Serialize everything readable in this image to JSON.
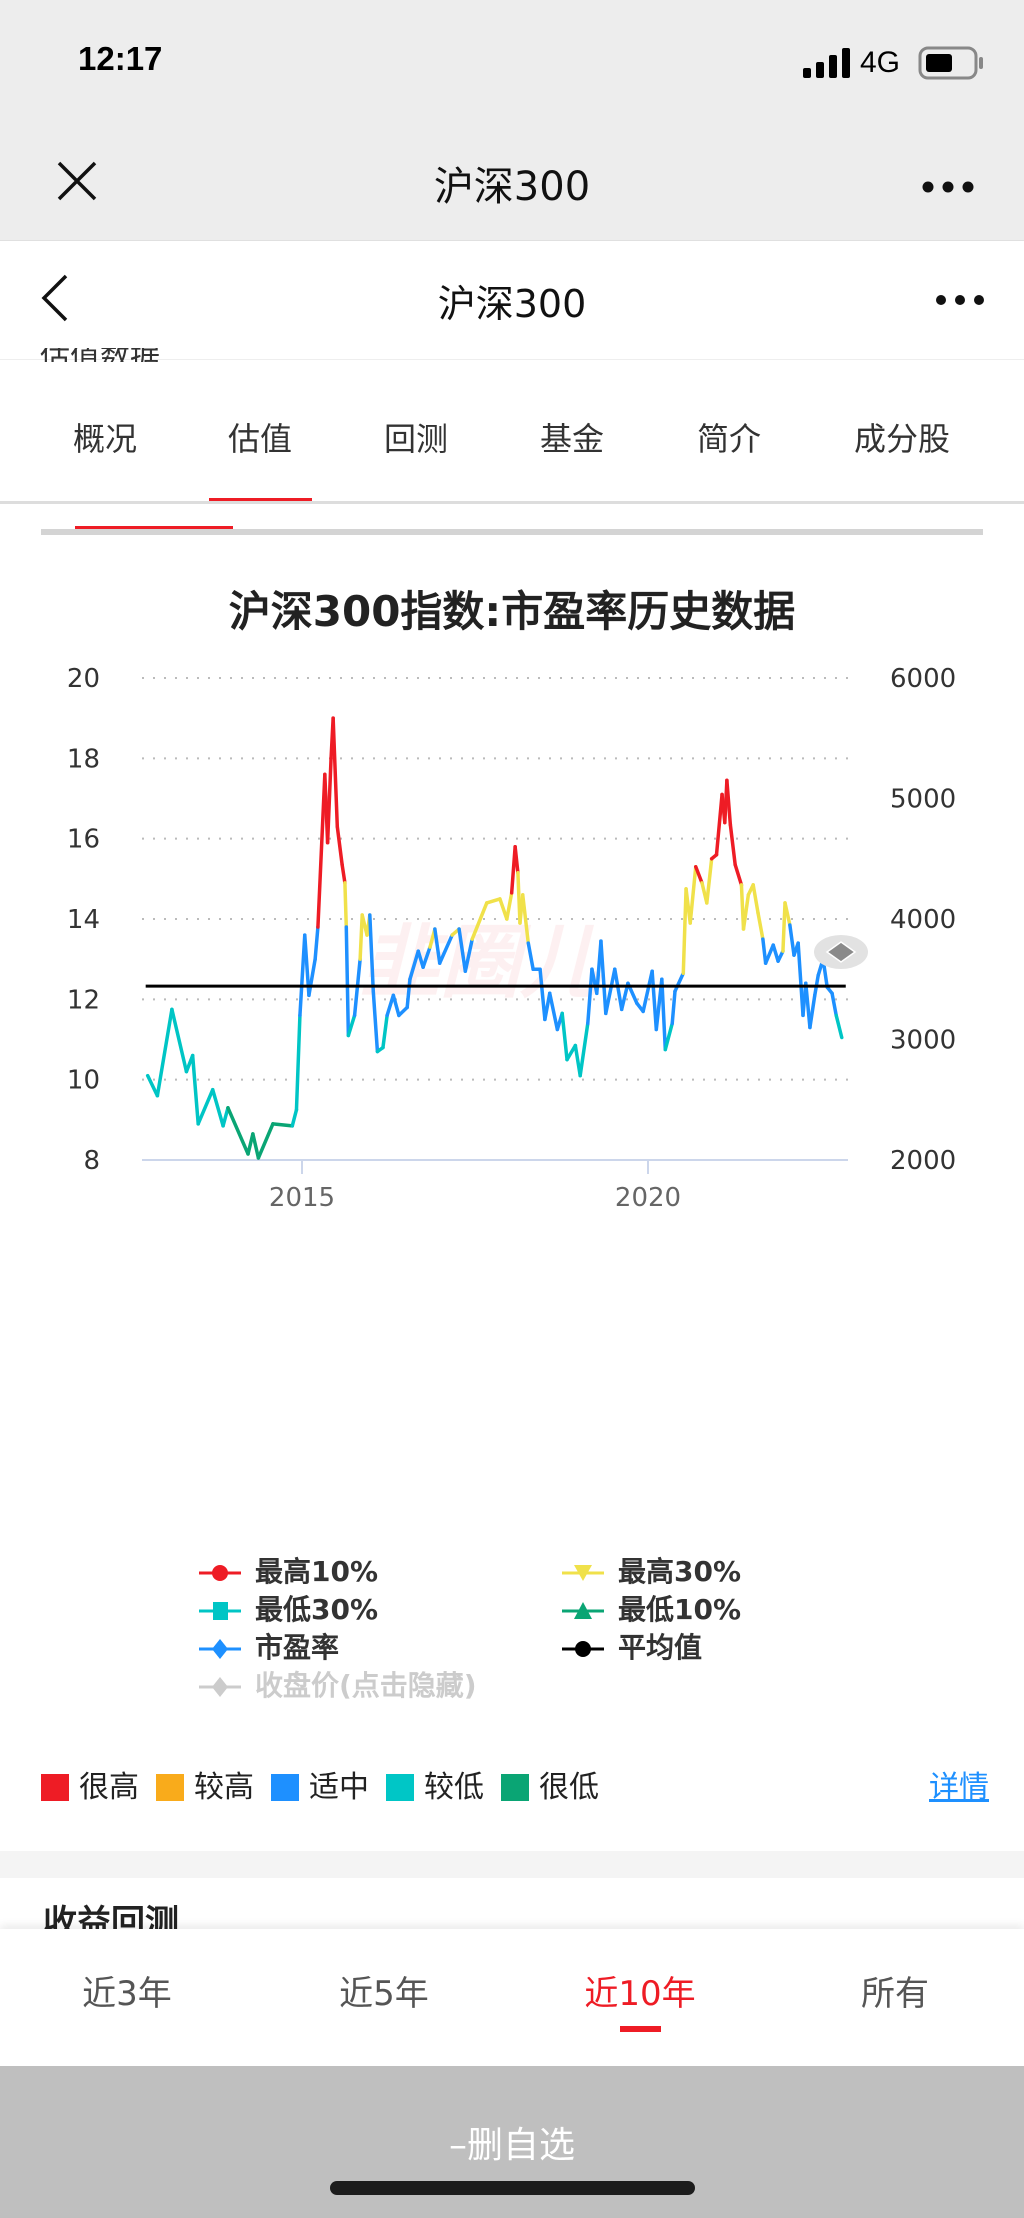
{
  "status_bar": {
    "time": "12:17",
    "network": "4G"
  },
  "wechat_bar": {
    "title": "沪深300"
  },
  "page_header": {
    "title": "沪深300",
    "peek_text": "估值数据"
  },
  "tabs": [
    {
      "label": "概况"
    },
    {
      "label": "估值",
      "active": true
    },
    {
      "label": "回测"
    },
    {
      "label": "基金"
    },
    {
      "label": "简介"
    },
    {
      "label": "成分股"
    }
  ],
  "watermark": "韭圈儿",
  "chart_data": {
    "type": "line",
    "title": "沪深300指数:市盈率历史数据",
    "xlabel": "",
    "ylabel": "",
    "x_ticks": [
      2015,
      2020
    ],
    "xlim": [
      2012.7,
      2022.9
    ],
    "y_left": {
      "ticks": [
        8,
        10,
        12,
        14,
        16,
        18,
        20
      ],
      "ylim": [
        8,
        20
      ]
    },
    "y_right": {
      "ticks": [
        2000,
        3000,
        4000,
        5000,
        6000
      ],
      "ylim": [
        2000,
        6000
      ]
    },
    "grid": true,
    "average": 12.33,
    "thresholds": {
      "top10": 15.0,
      "top30": 13.5,
      "bottom30": 11.4,
      "bottom10": 9.0
    },
    "colors": {
      "top10": "#ee1c25",
      "top30": "#f0e14a",
      "mid": "#1e90ff",
      "bottom30": "#00c5c5",
      "bottom10": "#0aa574",
      "average": "#000000",
      "close": "#cccccc"
    },
    "legend": [
      {
        "label": "最高10%",
        "marker": "circle",
        "color": "#ee1c25"
      },
      {
        "label": "最高30%",
        "marker": "triangle-down",
        "color": "#f0e14a"
      },
      {
        "label": "最低30%",
        "marker": "square",
        "color": "#00c5c5"
      },
      {
        "label": "最低10%",
        "marker": "triangle-up",
        "color": "#0aa574"
      },
      {
        "label": "市盈率",
        "marker": "diamond",
        "color": "#1e90ff"
      },
      {
        "label": "平均值",
        "marker": "circle",
        "color": "#000000"
      },
      {
        "label": "收盘价(点击隐藏)",
        "marker": "diamond",
        "color": "#cccccc",
        "hidden": true
      }
    ],
    "series": [
      {
        "name": "市盈率",
        "x": [
          2012.77,
          2012.91,
          2013.12,
          2013.33,
          2013.42,
          2013.5,
          2013.71,
          2013.86,
          2013.93,
          2014.22,
          2014.29,
          2014.37,
          2014.58,
          2014.86,
          2014.92,
          2014.97,
          2015.04,
          2015.1,
          2015.19,
          2015.23,
          2015.33,
          2015.37,
          2015.42,
          2015.45,
          2015.51,
          2015.58,
          2015.62,
          2015.64,
          2015.67,
          2015.76,
          2015.84,
          2015.87,
          2015.94,
          2015.98,
          2016.03,
          2016.09,
          2016.17,
          2016.23,
          2016.32,
          2016.4,
          2016.52,
          2016.56,
          2016.68,
          2016.75,
          2016.85,
          2016.92,
          2016.99,
          2017.17,
          2017.27,
          2017.36,
          2017.46,
          2017.67,
          2017.86,
          2017.96,
          2018.03,
          2018.08,
          2018.12,
          2018.15,
          2018.19,
          2018.27,
          2018.34,
          2018.44,
          2018.51,
          2018.58,
          2018.69,
          2018.76,
          2018.83,
          2018.95,
          2019.02,
          2019.13,
          2019.19,
          2019.26,
          2019.32,
          2019.39,
          2019.52,
          2019.62,
          2019.71,
          2019.84,
          2019.93,
          2020.06,
          2020.12,
          2020.2,
          2020.25,
          2020.35,
          2020.39,
          2020.51,
          2020.55,
          2020.61,
          2020.69,
          2020.78,
          2020.85,
          2020.92,
          2020.99,
          2021.07,
          2021.11,
          2021.14,
          2021.19,
          2021.26,
          2021.35,
          2021.38,
          2021.45,
          2021.52,
          2021.59,
          2021.66,
          2021.7,
          2021.81,
          2021.88,
          2021.95,
          2021.98,
          2022.05,
          2022.11,
          2022.17,
          2022.24,
          2022.28,
          2022.34,
          2022.41,
          2022.46,
          2022.53,
          2022.59,
          2022.66,
          2022.72,
          2022.8
        ],
        "y": [
          10.1,
          9.6,
          11.75,
          10.2,
          10.6,
          8.9,
          9.75,
          8.85,
          9.3,
          8.15,
          8.65,
          8.05,
          8.9,
          8.85,
          9.25,
          11.6,
          13.6,
          12.1,
          13.0,
          13.8,
          17.6,
          15.9,
          18.0,
          19.0,
          16.3,
          15.35,
          14.9,
          13.8,
          11.1,
          11.6,
          13.0,
          14.1,
          13.6,
          14.1,
          12.2,
          10.7,
          10.8,
          11.6,
          12.1,
          11.6,
          11.8,
          12.5,
          13.2,
          12.8,
          13.3,
          13.75,
          12.9,
          13.6,
          13.75,
          12.7,
          13.5,
          14.4,
          14.5,
          14.0,
          14.65,
          15.8,
          15.15,
          13.9,
          14.6,
          13.4,
          12.75,
          12.75,
          11.5,
          12.15,
          11.25,
          11.65,
          10.5,
          10.85,
          10.1,
          11.4,
          12.75,
          12.15,
          13.45,
          11.65,
          12.75,
          11.75,
          12.4,
          11.9,
          11.7,
          12.7,
          11.25,
          12.5,
          10.75,
          11.4,
          12.2,
          12.65,
          14.75,
          13.9,
          15.3,
          14.9,
          14.4,
          15.5,
          15.6,
          17.1,
          16.4,
          17.45,
          16.35,
          15.35,
          14.85,
          13.75,
          14.6,
          14.85,
          14.15,
          13.5,
          12.9,
          13.35,
          12.95,
          13.2,
          14.4,
          13.85,
          13.1,
          13.4,
          11.6,
          12.4,
          11.3,
          12.1,
          12.6,
          13.0,
          12.3,
          12.15,
          11.6,
          11.05
        ]
      }
    ]
  },
  "level_legend": [
    {
      "label": "很高",
      "color": "#ee1c25"
    },
    {
      "label": "较高",
      "color": "#f9ab1b"
    },
    {
      "label": "适中",
      "color": "#1e90ff"
    },
    {
      "label": "较低",
      "color": "#00c6c6"
    },
    {
      "label": "很低",
      "color": "#0aa574"
    }
  ],
  "detail_link": "详情",
  "next_section_peek": "收益回测",
  "ranges": [
    {
      "label": "近3年"
    },
    {
      "label": "近5年"
    },
    {
      "label": "近10年",
      "active": true
    },
    {
      "label": "所有"
    }
  ],
  "action_button": "–删自选"
}
